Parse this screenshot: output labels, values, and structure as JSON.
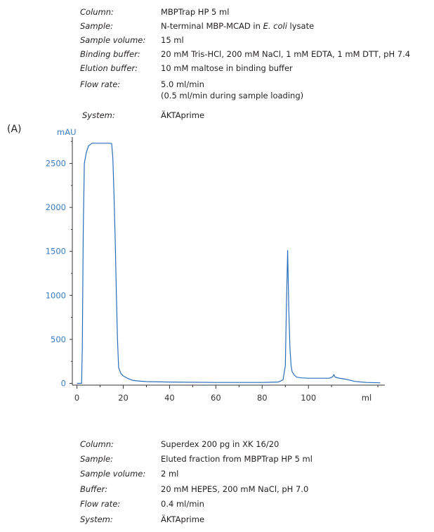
{
  "method_top": [
    {
      "label": "Column:",
      "value": "MBPTrap HP 5 ml"
    },
    {
      "label": "Sample:",
      "value_parts": [
        {
          "text": "N-terminal MBP-MCAD in ",
          "italic": false
        },
        {
          "text": "E. coli",
          "italic": true
        },
        {
          "text": " lysate",
          "italic": false
        }
      ]
    },
    {
      "label": "Sample volume:",
      "value": "15 ml"
    },
    {
      "label": "Binding buffer:",
      "value": "20 mM Tris-HCl, 200 mM NaCl, 1 mM EDTA, 1 mM DTT, pH 7.4"
    },
    {
      "label": "Elution buffer:",
      "value": "10 mM maltose in binding buffer"
    },
    {
      "label": "Flow rate:",
      "value": "5.0 ml/min",
      "value_line2": "(0.5 ml/min during sample loading)"
    },
    {
      "label": "System:",
      "value": "ÄKTAprime"
    }
  ],
  "panel_label": "(A)",
  "method_bottom": [
    {
      "label": "Column:",
      "value": "Superdex 200 pg in XK 16/20"
    },
    {
      "label": "Sample:",
      "value": "Eluted fraction from MBPTrap HP 5 ml"
    },
    {
      "label": "Sample volume:",
      "value": "2 ml"
    },
    {
      "label": "Buffer:",
      "value": "20 mM HEPES, 200 mM NaCl, pH 7.0"
    },
    {
      "label": "Flow rate:",
      "value": "0.4 ml/min"
    },
    {
      "label": "System:",
      "value": "ÄKTAprime"
    }
  ],
  "chart_data": {
    "type": "line",
    "ylabel": "mAU",
    "xlabel": "ml",
    "xlim": [
      -2,
      133
    ],
    "ylim": [
      -20,
      2800
    ],
    "x_ticks": [
      0,
      20,
      40,
      60,
      80,
      100
    ],
    "y_ticks": [
      0,
      500,
      1000,
      1500,
      2000,
      2500
    ],
    "x_tick_labels": [
      "0",
      "20",
      "40",
      "60",
      "80",
      "100"
    ],
    "y_tick_labels": [
      "0",
      "500",
      "1000",
      "1500",
      "2000",
      "2500"
    ],
    "grid": false,
    "colors": {
      "trace": "#2a6ebb",
      "axis_text": "#3a7cc2",
      "axis_line": "#333333"
    },
    "series": [
      {
        "x": [
          0,
          2,
          2.3,
          2.7,
          3.2,
          4,
          5,
          6.5,
          8,
          10,
          12,
          14,
          15,
          15.5,
          16,
          16.5,
          17,
          17.5,
          18,
          19,
          20,
          22,
          24,
          26,
          30,
          40,
          60,
          80,
          87,
          89,
          90,
          90.5,
          91,
          91.5,
          92,
          92.5,
          93,
          94,
          95,
          97,
          100,
          105,
          109,
          110.5,
          111,
          111.5,
          113,
          116,
          120,
          125,
          131
        ],
        "y": [
          0,
          0,
          400,
          1700,
          2500,
          2620,
          2700,
          2730,
          2730,
          2730,
          2730,
          2730,
          2725,
          2560,
          2150,
          1650,
          1050,
          500,
          180,
          110,
          85,
          55,
          35,
          28,
          20,
          15,
          10,
          10,
          15,
          40,
          200,
          900,
          1510,
          850,
          400,
          200,
          130,
          90,
          70,
          62,
          58,
          58,
          58,
          75,
          100,
          72,
          60,
          48,
          22,
          10,
          6
        ]
      }
    ]
  }
}
